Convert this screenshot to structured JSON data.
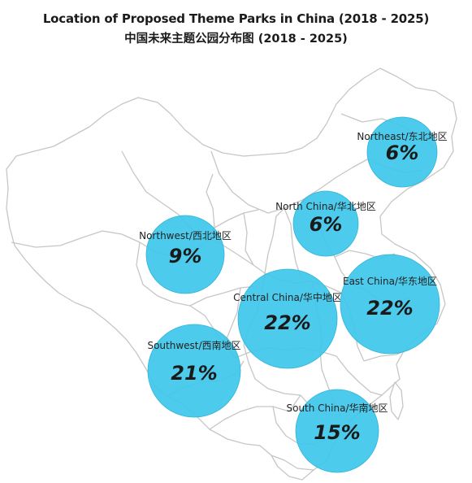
{
  "title_en": "Location of Proposed Theme Parks in China (2018 - 2025)",
  "title_zh": "中国未来主题公园分布图 (2018 - 2025)",
  "colors": {
    "bubble": "#3ec7ea",
    "outline": "#c6c6c6"
  },
  "regions": [
    {
      "id": "northeast",
      "label": "Northeast/东北地区",
      "value": "6%",
      "pct": 6
    },
    {
      "id": "north-china",
      "label": "North China/华北地区",
      "value": "6%",
      "pct": 6
    },
    {
      "id": "northwest",
      "label": "Northwest/西北地区",
      "value": "9%",
      "pct": 9
    },
    {
      "id": "central-china",
      "label": "Central China/华中地区",
      "value": "22%",
      "pct": 22
    },
    {
      "id": "east-china",
      "label": "East China/华东地区",
      "value": "22%",
      "pct": 22
    },
    {
      "id": "southwest",
      "label": "Southwest/西南地区",
      "value": "21%",
      "pct": 21
    },
    {
      "id": "south-china",
      "label": "South China/华南地区",
      "value": "15%",
      "pct": 15
    }
  ]
}
